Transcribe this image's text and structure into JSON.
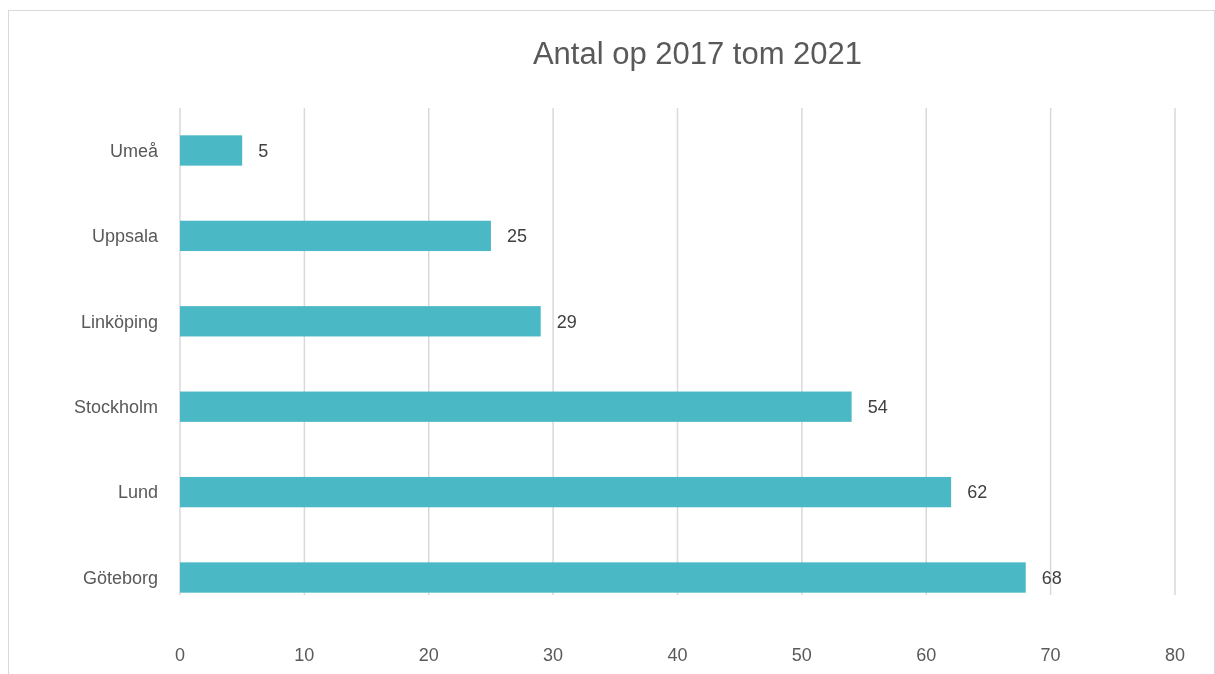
{
  "chart_data": {
    "type": "bar",
    "orientation": "horizontal",
    "title": "Antal op 2017 tom 2021",
    "categories": [
      "Umeå",
      "Uppsala",
      "Linköping",
      "Stockholm",
      "Lund",
      "Göteborg"
    ],
    "values": [
      5,
      25,
      29,
      54,
      62,
      68
    ],
    "color": "#4bb8c6",
    "xlim": [
      0,
      80
    ],
    "xticks": [
      0,
      10,
      20,
      30,
      40,
      50,
      60,
      70,
      80
    ],
    "grid": "x",
    "data_labels": true
  }
}
